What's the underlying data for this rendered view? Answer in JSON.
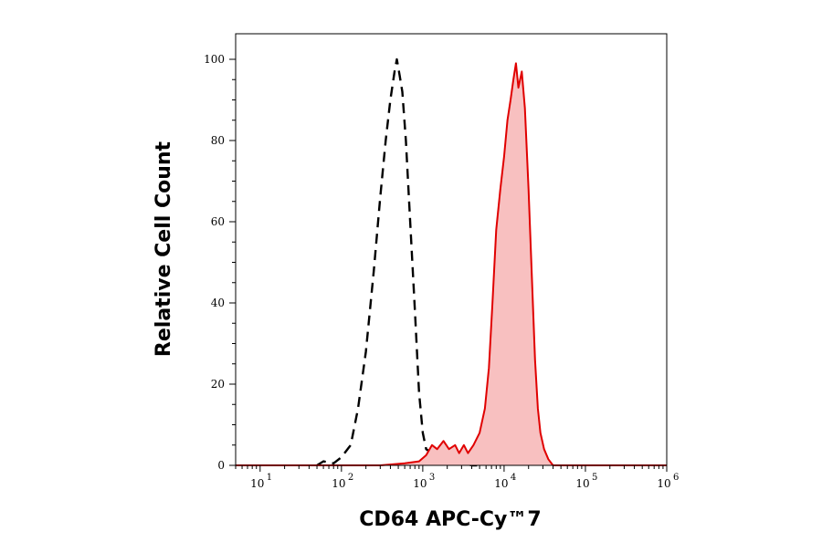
{
  "chart_data": {
    "type": "histogram",
    "xlabel": "CD64 APC-Cy™7",
    "ylabel": "Relative Cell Count",
    "x_scale": "log",
    "xlim": [
      5,
      1000000
    ],
    "ylim": [
      0,
      100
    ],
    "x_ticks": [
      {
        "value": 10,
        "base": "10",
        "exp": "1"
      },
      {
        "value": 100,
        "base": "10",
        "exp": "2"
      },
      {
        "value": 1000,
        "base": "10",
        "exp": "3"
      },
      {
        "value": 10000,
        "base": "10",
        "exp": "4"
      },
      {
        "value": 100000,
        "base": "10",
        "exp": "5"
      },
      {
        "value": 1000000,
        "base": "10",
        "exp": "6"
      }
    ],
    "y_ticks": [
      "0",
      "20",
      "40",
      "60",
      "80",
      "100"
    ],
    "grid": false,
    "series": [
      {
        "style": "dashed",
        "color": "#000000",
        "fill": "none",
        "points": [
          [
            50,
            0
          ],
          [
            60,
            1
          ],
          [
            80,
            0.5
          ],
          [
            100,
            2
          ],
          [
            130,
            5
          ],
          [
            160,
            14
          ],
          [
            200,
            28
          ],
          [
            250,
            48
          ],
          [
            300,
            66
          ],
          [
            350,
            80
          ],
          [
            400,
            90
          ],
          [
            450,
            97
          ],
          [
            480,
            100
          ],
          [
            520,
            96
          ],
          [
            560,
            92
          ],
          [
            620,
            80
          ],
          [
            700,
            60
          ],
          [
            800,
            38
          ],
          [
            900,
            18
          ],
          [
            1000,
            8
          ],
          [
            1100,
            4
          ],
          [
            1300,
            3
          ],
          [
            1600,
            1
          ],
          [
            2000,
            1.5
          ],
          [
            2500,
            0.5
          ],
          [
            3200,
            0.5
          ],
          [
            4000,
            0
          ],
          [
            5000,
            0
          ]
        ]
      },
      {
        "style": "solid",
        "color": "#e00000",
        "fill": "#f8c0c0",
        "points": [
          [
            5,
            0
          ],
          [
            300,
            0
          ],
          [
            600,
            0.5
          ],
          [
            900,
            1
          ],
          [
            1100,
            2.5
          ],
          [
            1300,
            5
          ],
          [
            1500,
            4
          ],
          [
            1800,
            6
          ],
          [
            2100,
            4
          ],
          [
            2500,
            5
          ],
          [
            2800,
            3
          ],
          [
            3200,
            5
          ],
          [
            3600,
            3
          ],
          [
            4200,
            5
          ],
          [
            5000,
            8
          ],
          [
            5800,
            14
          ],
          [
            6500,
            24
          ],
          [
            7200,
            40
          ],
          [
            8000,
            58
          ],
          [
            9000,
            68
          ],
          [
            10000,
            76
          ],
          [
            11000,
            85
          ],
          [
            12000,
            90
          ],
          [
            13000,
            95
          ],
          [
            14000,
            99
          ],
          [
            15000,
            93
          ],
          [
            16500,
            97
          ],
          [
            18000,
            88
          ],
          [
            20000,
            68
          ],
          [
            22000,
            46
          ],
          [
            24000,
            26
          ],
          [
            26000,
            14
          ],
          [
            28000,
            8
          ],
          [
            31000,
            4
          ],
          [
            35000,
            1.5
          ],
          [
            40000,
            0
          ],
          [
            1000000,
            0
          ]
        ]
      }
    ]
  }
}
